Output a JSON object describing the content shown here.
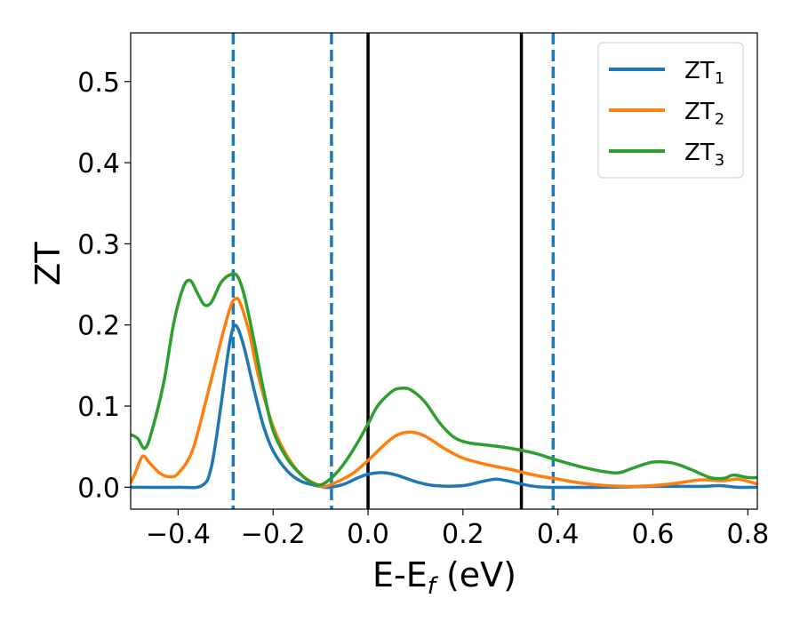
{
  "chart_data": {
    "type": "line",
    "title": "",
    "xlabel": {
      "main": "E-E",
      "sub": "f",
      "suffix": " (eV)"
    },
    "ylabel": "ZT",
    "xlim": [
      -0.5,
      0.82
    ],
    "ylim": [
      -0.027,
      0.56
    ],
    "xticks": [
      -0.4,
      -0.2,
      0.0,
      0.2,
      0.4,
      0.6,
      0.8
    ],
    "xtick_labels": [
      "−0.4",
      "−0.2",
      "0.0",
      "0.2",
      "0.4",
      "0.6",
      "0.8"
    ],
    "yticks": [
      0.0,
      0.1,
      0.2,
      0.3,
      0.4,
      0.5
    ],
    "ytick_labels": [
      "0.0",
      "0.1",
      "0.2",
      "0.3",
      "0.4",
      "0.5"
    ],
    "grid": false,
    "legend_position": "top-right",
    "vlines": [
      {
        "x": -0.284,
        "style": "dashed",
        "color": "#1f77b4"
      },
      {
        "x": -0.077,
        "style": "dashed",
        "color": "#1f77b4"
      },
      {
        "x": 0.0,
        "style": "solid",
        "color": "#000000"
      },
      {
        "x": 0.323,
        "style": "solid",
        "color": "#000000"
      },
      {
        "x": 0.39,
        "style": "dashed",
        "color": "#1f77b4"
      }
    ],
    "series": [
      {
        "name": "ZT",
        "sub": "1",
        "color": "#1f77b4",
        "points": [
          [
            -0.5,
            0.0
          ],
          [
            -0.4,
            0.0
          ],
          [
            -0.35,
            0.002
          ],
          [
            -0.33,
            0.025
          ],
          [
            -0.31,
            0.1
          ],
          [
            -0.295,
            0.165
          ],
          [
            -0.285,
            0.195
          ],
          [
            -0.275,
            0.197
          ],
          [
            -0.26,
            0.17
          ],
          [
            -0.24,
            0.12
          ],
          [
            -0.22,
            0.075
          ],
          [
            -0.2,
            0.045
          ],
          [
            -0.17,
            0.02
          ],
          [
            -0.14,
            0.007
          ],
          [
            -0.1,
            0.001
          ],
          [
            -0.08,
            0.0
          ],
          [
            -0.05,
            0.004
          ],
          [
            -0.02,
            0.012
          ],
          [
            0.0,
            0.016
          ],
          [
            0.03,
            0.018
          ],
          [
            0.06,
            0.015
          ],
          [
            0.1,
            0.007
          ],
          [
            0.14,
            0.002
          ],
          [
            0.2,
            0.002
          ],
          [
            0.24,
            0.007
          ],
          [
            0.27,
            0.01
          ],
          [
            0.3,
            0.007
          ],
          [
            0.34,
            0.002
          ],
          [
            0.38,
            0.0
          ],
          [
            0.5,
            0.0
          ],
          [
            0.6,
            0.001
          ],
          [
            0.7,
            0.001
          ],
          [
            0.74,
            0.002
          ],
          [
            0.78,
            0.0
          ],
          [
            0.82,
            0.0
          ]
        ]
      },
      {
        "name": "ZT",
        "sub": "2",
        "color": "#ff7f0e",
        "points": [
          [
            -0.5,
            0.005
          ],
          [
            -0.49,
            0.018
          ],
          [
            -0.475,
            0.038
          ],
          [
            -0.46,
            0.03
          ],
          [
            -0.44,
            0.018
          ],
          [
            -0.42,
            0.013
          ],
          [
            -0.4,
            0.017
          ],
          [
            -0.37,
            0.045
          ],
          [
            -0.34,
            0.11
          ],
          [
            -0.31,
            0.18
          ],
          [
            -0.29,
            0.222
          ],
          [
            -0.28,
            0.232
          ],
          [
            -0.27,
            0.228
          ],
          [
            -0.25,
            0.19
          ],
          [
            -0.23,
            0.135
          ],
          [
            -0.2,
            0.075
          ],
          [
            -0.17,
            0.038
          ],
          [
            -0.14,
            0.015
          ],
          [
            -0.11,
            0.004
          ],
          [
            -0.09,
            0.001
          ],
          [
            -0.06,
            0.008
          ],
          [
            -0.03,
            0.018
          ],
          [
            0.0,
            0.033
          ],
          [
            0.03,
            0.05
          ],
          [
            0.06,
            0.064
          ],
          [
            0.09,
            0.068
          ],
          [
            0.12,
            0.063
          ],
          [
            0.16,
            0.048
          ],
          [
            0.2,
            0.036
          ],
          [
            0.25,
            0.028
          ],
          [
            0.3,
            0.022
          ],
          [
            0.35,
            0.015
          ],
          [
            0.4,
            0.01
          ],
          [
            0.45,
            0.005
          ],
          [
            0.5,
            0.002
          ],
          [
            0.55,
            0.001
          ],
          [
            0.6,
            0.002
          ],
          [
            0.65,
            0.005
          ],
          [
            0.7,
            0.009
          ],
          [
            0.75,
            0.008
          ],
          [
            0.78,
            0.01
          ],
          [
            0.82,
            0.004
          ]
        ]
      },
      {
        "name": "ZT",
        "sub": "3",
        "color": "#2ca02c",
        "points": [
          [
            -0.5,
            0.065
          ],
          [
            -0.485,
            0.06
          ],
          [
            -0.47,
            0.048
          ],
          [
            -0.455,
            0.07
          ],
          [
            -0.43,
            0.13
          ],
          [
            -0.41,
            0.2
          ],
          [
            -0.39,
            0.245
          ],
          [
            -0.375,
            0.255
          ],
          [
            -0.36,
            0.24
          ],
          [
            -0.345,
            0.225
          ],
          [
            -0.33,
            0.228
          ],
          [
            -0.31,
            0.252
          ],
          [
            -0.29,
            0.262
          ],
          [
            -0.275,
            0.26
          ],
          [
            -0.26,
            0.235
          ],
          [
            -0.24,
            0.18
          ],
          [
            -0.22,
            0.12
          ],
          [
            -0.2,
            0.07
          ],
          [
            -0.17,
            0.035
          ],
          [
            -0.14,
            0.015
          ],
          [
            -0.12,
            0.006
          ],
          [
            -0.1,
            0.003
          ],
          [
            -0.08,
            0.01
          ],
          [
            -0.06,
            0.022
          ],
          [
            -0.04,
            0.038
          ],
          [
            -0.02,
            0.057
          ],
          [
            0.0,
            0.078
          ],
          [
            0.02,
            0.1
          ],
          [
            0.05,
            0.118
          ],
          [
            0.07,
            0.122
          ],
          [
            0.09,
            0.12
          ],
          [
            0.12,
            0.105
          ],
          [
            0.15,
            0.08
          ],
          [
            0.18,
            0.062
          ],
          [
            0.21,
            0.055
          ],
          [
            0.25,
            0.052
          ],
          [
            0.3,
            0.048
          ],
          [
            0.35,
            0.042
          ],
          [
            0.4,
            0.033
          ],
          [
            0.45,
            0.025
          ],
          [
            0.5,
            0.019
          ],
          [
            0.53,
            0.018
          ],
          [
            0.56,
            0.024
          ],
          [
            0.6,
            0.031
          ],
          [
            0.64,
            0.03
          ],
          [
            0.68,
            0.022
          ],
          [
            0.72,
            0.012
          ],
          [
            0.75,
            0.011
          ],
          [
            0.77,
            0.015
          ],
          [
            0.8,
            0.012
          ],
          [
            0.82,
            0.012
          ]
        ]
      }
    ]
  }
}
